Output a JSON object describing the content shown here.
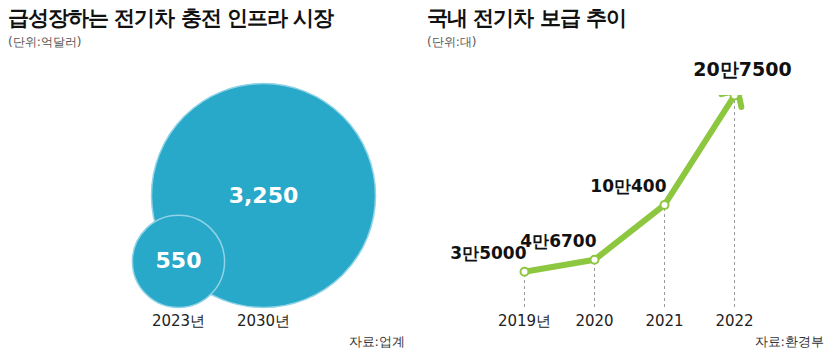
{
  "chart_data": [
    {
      "type": "bubble",
      "title": "급성장하는 전기차 충전 인프라 시장",
      "subtitle": "(단위:억달러)",
      "categories": [
        "2023년",
        "2030년"
      ],
      "values": [
        550,
        3250
      ],
      "color": "#29a9c9",
      "data_labels": true,
      "tick_labels": "x",
      "source": "자료:업계"
    },
    {
      "type": "line",
      "title": "국내 전기차 보급 추이",
      "subtitle": "(단위:대)",
      "categories": [
        "2019년",
        "2020",
        "2021",
        "2022"
      ],
      "values": [
        35000,
        46700,
        100400,
        207500
      ],
      "value_labels": [
        "3만5000",
        "4만6700",
        "10만400",
        "20만7500"
      ],
      "color": "#8dc63f",
      "data_labels": true,
      "tick_labels": "x",
      "marker": "circle",
      "source": "자료:환경부"
    }
  ]
}
